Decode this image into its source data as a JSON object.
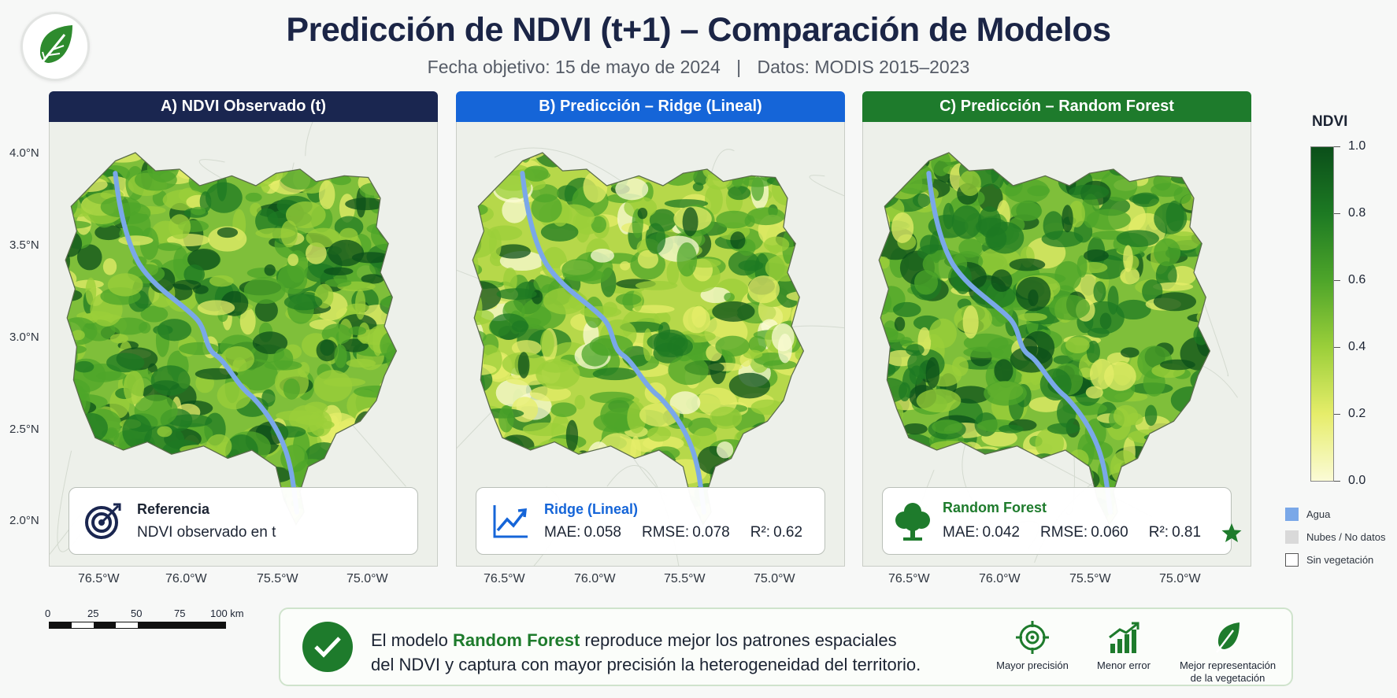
{
  "header": {
    "title": "Predicción de NDVI (t+1) – Comparación de Modelos",
    "date_label": "Fecha objetivo: 15 de mayo de 2024",
    "separator": "|",
    "data_label": "Datos: MODIS 2015–2023"
  },
  "panels": [
    {
      "title": "A) NDVI Observado (t)",
      "header_color": "#1a2650",
      "box_title": "Referencia",
      "box_title_color": "#1c2433",
      "box_subtitle": "NDVI observado en t",
      "icon": "target-icon"
    },
    {
      "title": "B) Predicción – Ridge (Lineal)",
      "header_color": "#1565d8",
      "box_title": "Ridge (Lineal)",
      "box_title_color": "#1565d8",
      "metrics": {
        "mae_label": "MAE:",
        "mae": "0.058",
        "rmse_label": "RMSE:",
        "rmse": "0.078",
        "r2_label": "R²:",
        "r2": "0.62"
      },
      "icon": "line-chart-icon"
    },
    {
      "title": "C) Predicción – Random Forest",
      "header_color": "#1e7b2c",
      "box_title": "Random Forest",
      "box_title_color": "#1e7b2c",
      "metrics": {
        "mae_label": "MAE:",
        "mae": "0.042",
        "rmse_label": "RMSE:",
        "rmse": "0.060",
        "r2_label": "R²:",
        "r2": "0.81"
      },
      "icon": "tree-icon",
      "badge": "star-icon"
    }
  ],
  "axes": {
    "lat_ticks": [
      "4.0°N",
      "3.5°N",
      "3.0°N",
      "2.5°N",
      "2.0°N"
    ],
    "lon_ticks": [
      "76.5°W",
      "76.0°W",
      "75.5°W",
      "75.0°W"
    ]
  },
  "colorbar": {
    "title": "NDVI",
    "ticks": [
      "1.0",
      "0.8",
      "0.6",
      "0.4",
      "0.2",
      "0.0"
    ],
    "range": [
      0.0,
      1.0
    ],
    "colors": [
      "#fbfbd6",
      "#e6ed6a",
      "#9bcf3a",
      "#4ea52a",
      "#1d7a23",
      "#0b4f1a"
    ]
  },
  "legend": [
    {
      "label": "Agua",
      "color": "#7aa8e8"
    },
    {
      "label": "Nubes / No datos",
      "color": "#d9d9d9"
    },
    {
      "label": "Sin vegetación",
      "color": "#ffffff"
    }
  ],
  "scale": {
    "ticks": [
      "0",
      "25",
      "50",
      "75",
      "100 km"
    ]
  },
  "conclusion": {
    "line1_pre": "El modelo ",
    "line1_hl": "Random Forest",
    "line1_post": " reproduce mejor los patrones espaciales",
    "line2": "del NDVI y captura con mayor precisión la heterogeneidad del territorio.",
    "features": [
      {
        "icon": "crosshair-icon",
        "label": "Mayor precisión"
      },
      {
        "icon": "bar-chart-up-icon",
        "label": "Menor error"
      },
      {
        "icon": "leaf-icon",
        "label_line1": "Mejor representación",
        "label_line2": "de la vegetación"
      }
    ]
  },
  "colors": {
    "green": "#1e7b2c",
    "blue": "#1565d8",
    "navy": "#1a2650",
    "water": "#7aa8e8"
  }
}
